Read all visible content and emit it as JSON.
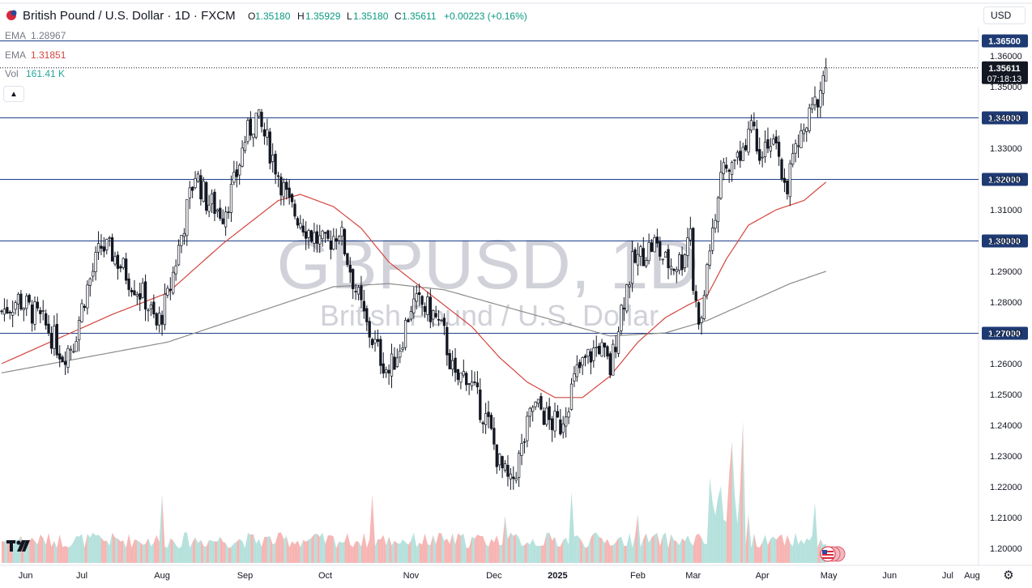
{
  "header": {
    "title": "British Pound / U.S. Dollar · 1D · FXCM",
    "o_label": "O",
    "o_value": "1.35180",
    "h_label": "H",
    "h_value": "1.35929",
    "l_label": "L",
    "l_value": "1.35180",
    "c_label": "C",
    "c_value": "1.35611",
    "change": "+0.00223 (+0.16%)"
  },
  "indicators": [
    {
      "label": "EMA",
      "value": "1.28967",
      "color": "#8c8c8c"
    },
    {
      "label": "EMA",
      "value": "1.31851",
      "color": "#d3453f"
    },
    {
      "label": "Vol",
      "value": "161.41 K",
      "color": "#26a69a"
    }
  ],
  "currency_button": "USD",
  "watermark": {
    "symbol": "GBPUSD, 1D",
    "name": "British Pound / U.S. Dollar"
  },
  "colors": {
    "up": "#131722",
    "down": "#131722",
    "level_line": "#1e3f8a",
    "level_label_bg": "#1e3a73",
    "ema_fast": "#d3453f",
    "ema_slow": "#8c8c8c",
    "vol_up": "#a8dcd6",
    "vol_down": "#f5a8a6",
    "price_label_bg": "#131722"
  },
  "icons": {
    "logo": "tradingview-logo",
    "settings": "gear-icon",
    "collapse": "chevron-up-icon",
    "flag": "gbp-usd-flag-icon",
    "events": "economic-events-icon"
  },
  "chart_data": {
    "type": "candlestick",
    "symbol": "GBPUSD",
    "ylim": [
      1.195,
      1.37
    ],
    "y_ticks": [
      "1.36000",
      "1.35000",
      "1.34000",
      "1.33000",
      "1.32000",
      "1.31000",
      "1.30000",
      "1.29000",
      "1.28000",
      "1.27000",
      "1.26000",
      "1.25000",
      "1.24000",
      "1.23000",
      "1.22000",
      "1.21000",
      "1.20000"
    ],
    "x_ticks": [
      "Jun",
      "Jul",
      "Aug",
      "Sep",
      "Oct",
      "Nov",
      "Dec",
      "2025",
      "Feb",
      "Mar",
      "Apr",
      "May",
      "Jun",
      "Jul",
      "Aug"
    ],
    "horizontal_levels": [
      "1.36500",
      "1.34000",
      "1.32000",
      "1.30000",
      "1.27000"
    ],
    "last_price": {
      "value": "1.35611",
      "countdown": "07:18:13"
    },
    "close_path": [
      [
        0,
        1.277
      ],
      [
        6,
        1.281
      ],
      [
        12,
        1.276
      ],
      [
        17,
        1.271
      ],
      [
        22,
        1.263
      ],
      [
        26,
        1.267
      ],
      [
        30,
        1.282
      ],
      [
        36,
        1.298
      ],
      [
        40,
        1.296
      ],
      [
        46,
        1.288
      ],
      [
        52,
        1.281
      ],
      [
        56,
        1.272
      ],
      [
        60,
        1.281
      ],
      [
        66,
        1.306
      ],
      [
        70,
        1.322
      ],
      [
        74,
        1.313
      ],
      [
        80,
        1.309
      ],
      [
        84,
        1.318
      ],
      [
        88,
        1.333
      ],
      [
        92,
        1.34
      ],
      [
        96,
        1.332
      ],
      [
        100,
        1.322
      ],
      [
        104,
        1.311
      ],
      [
        108,
        1.307
      ],
      [
        112,
        1.302
      ],
      [
        117,
        1.298
      ],
      [
        122,
        1.304
      ],
      [
        126,
        1.291
      ],
      [
        128,
        1.284
      ],
      [
        132,
        1.272
      ],
      [
        136,
        1.264
      ],
      [
        140,
        1.257
      ],
      [
        144,
        1.266
      ],
      [
        148,
        1.279
      ],
      [
        152,
        1.279
      ],
      [
        156,
        1.276
      ],
      [
        160,
        1.269
      ],
      [
        164,
        1.254
      ],
      [
        168,
        1.257
      ],
      [
        172,
        1.248
      ],
      [
        176,
        1.24
      ],
      [
        180,
        1.227
      ],
      [
        184,
        1.22
      ],
      [
        188,
        1.232
      ],
      [
        192,
        1.246
      ],
      [
        195,
        1.245
      ],
      [
        198,
        1.241
      ],
      [
        202,
        1.24
      ],
      [
        204,
        1.246
      ],
      [
        208,
        1.257
      ],
      [
        212,
        1.262
      ],
      [
        216,
        1.266
      ],
      [
        220,
        1.258
      ],
      [
        224,
        1.278
      ],
      [
        228,
        1.292
      ],
      [
        232,
        1.296
      ],
      [
        236,
        1.299
      ],
      [
        240,
        1.293
      ],
      [
        243,
        1.292
      ],
      [
        246,
        1.294
      ],
      [
        249,
        1.305
      ],
      [
        250,
        1.285
      ],
      [
        251,
        1.279
      ],
      [
        253,
        1.273
      ],
      [
        255,
        1.292
      ],
      [
        258,
        1.31
      ],
      [
        261,
        1.322
      ],
      [
        265,
        1.326
      ],
      [
        268,
        1.331
      ],
      [
        271,
        1.339
      ],
      [
        274,
        1.33
      ],
      [
        277,
        1.333
      ],
      [
        280,
        1.328
      ],
      [
        282,
        1.322
      ],
      [
        284,
        1.318
      ],
      [
        286,
        1.327
      ],
      [
        288,
        1.331
      ],
      [
        291,
        1.337
      ],
      [
        294,
        1.344
      ],
      [
        296,
        1.35
      ],
      [
        298,
        1.356
      ]
    ],
    "ema_slow_path": [
      [
        0,
        1.257
      ],
      [
        30,
        1.262
      ],
      [
        60,
        1.267
      ],
      [
        90,
        1.276
      ],
      [
        120,
        1.285
      ],
      [
        140,
        1.286
      ],
      [
        160,
        1.284
      ],
      [
        180,
        1.279
      ],
      [
        200,
        1.274
      ],
      [
        220,
        1.269
      ],
      [
        240,
        1.27
      ],
      [
        255,
        1.274
      ],
      [
        270,
        1.28
      ],
      [
        285,
        1.286
      ],
      [
        298,
        1.29
      ]
    ],
    "ema_fast_path": [
      [
        0,
        1.26
      ],
      [
        20,
        1.268
      ],
      [
        40,
        1.276
      ],
      [
        60,
        1.283
      ],
      [
        80,
        1.299
      ],
      [
        100,
        1.313
      ],
      [
        108,
        1.315
      ],
      [
        120,
        1.311
      ],
      [
        130,
        1.304
      ],
      [
        140,
        1.293
      ],
      [
        150,
        1.286
      ],
      [
        160,
        1.279
      ],
      [
        170,
        1.272
      ],
      [
        180,
        1.262
      ],
      [
        190,
        1.254
      ],
      [
        200,
        1.249
      ],
      [
        210,
        1.249
      ],
      [
        220,
        1.256
      ],
      [
        230,
        1.267
      ],
      [
        240,
        1.275
      ],
      [
        248,
        1.279
      ],
      [
        255,
        1.282
      ],
      [
        262,
        1.294
      ],
      [
        270,
        1.305
      ],
      [
        280,
        1.31
      ],
      [
        290,
        1.313
      ],
      [
        298,
        1.319
      ]
    ],
    "volume_scale": "relative"
  }
}
